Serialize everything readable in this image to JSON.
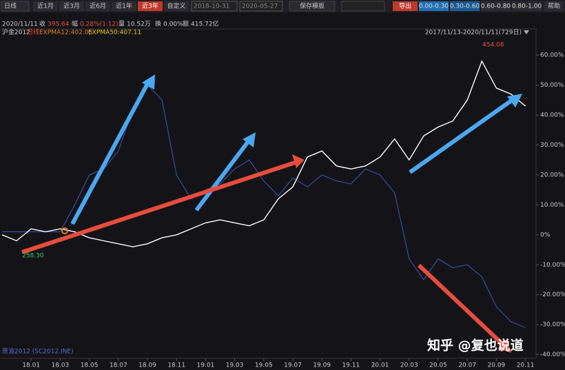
{
  "toolbar": {
    "period": "日线",
    "ranges": [
      "近1月",
      "近3月",
      "近6月",
      "近1年",
      "近3年",
      "自定义"
    ],
    "start_date": "2018-10-31",
    "end_date": "2020-05-27",
    "save": "保存模板",
    "export": "导出",
    "bands": [
      "0.00-0.30",
      "0.30-0.60",
      "0.60-0.80",
      "0.80-1.00"
    ],
    "help": "帮助"
  },
  "info": {
    "date": "2020/11/11",
    "close_label": "收",
    "close": "395.64",
    "change_label": "幅",
    "change": "0.28%(1.12)",
    "volume_label": "量",
    "volume": "10.52万",
    "turnover_label": "换",
    "turnover": "0.00%",
    "amount_label": "额",
    "amount": "415.72亿",
    "period": "日线",
    "ema12": "EXPMA12:402.05",
    "ema50": "EXPMA50:407.11",
    "span": "2017/11/13-2020/11/11(729日)"
  },
  "chart_data": {
    "type": "line",
    "annotations": {
      "high": "454.08",
      "low": "258.30"
    },
    "watermark": "知乎 @复也说道",
    "categories": [
      null,
      null,
      "18.01",
      null,
      "18.03",
      null,
      "18.05",
      null,
      "18.07",
      null,
      "18.09",
      null,
      "18.11",
      null,
      "19.01",
      null,
      "19.03",
      null,
      "19.05",
      null,
      "19.07",
      null,
      "19.09",
      null,
      "19.11",
      null,
      "20.01",
      null,
      "20.03",
      null,
      "20.05",
      null,
      "20.07",
      null,
      "20.09",
      null,
      "20.11"
    ],
    "series": [
      {
        "name": "沪金2012",
        "color": "#ffffff",
        "values": [
          0,
          -2,
          2,
          1,
          2,
          1,
          -1,
          -2,
          -3,
          -4,
          -3,
          -1,
          0,
          2,
          4,
          5,
          4,
          3,
          5,
          12,
          16,
          26,
          28,
          23,
          22,
          23,
          26,
          32,
          25,
          33,
          36,
          38,
          45,
          58,
          49,
          47,
          43
        ]
      },
      {
        "name": "原油2012 (SC2012.INE)",
        "color": "#3a4aa0",
        "values": [
          1,
          1,
          1,
          1,
          1,
          10,
          20,
          22,
          28,
          42,
          50,
          45,
          20,
          12,
          15,
          17,
          22,
          25,
          18,
          13,
          19,
          16,
          20,
          18,
          17,
          22,
          20,
          14,
          -8,
          -15,
          -8,
          -11,
          -10,
          -14,
          -24,
          -29,
          -31
        ]
      }
    ],
    "ylim": [
      -41,
      64
    ],
    "yticks": [
      {
        "value": -40,
        "label": "-40.00%"
      },
      {
        "value": -30,
        "label": "-30.00%"
      },
      {
        "value": -20,
        "label": "-20.00%"
      },
      {
        "value": -10,
        "label": "-10.00%"
      },
      {
        "value": 0,
        "label": "0%"
      },
      {
        "value": 10,
        "label": "10.00%"
      },
      {
        "value": 20,
        "label": "20.00%"
      },
      {
        "value": 30,
        "label": "30.00%"
      },
      {
        "value": 40,
        "label": "40.00%"
      },
      {
        "value": 50,
        "label": "50.00%"
      },
      {
        "value": 60,
        "label": "60.00%"
      }
    ]
  }
}
